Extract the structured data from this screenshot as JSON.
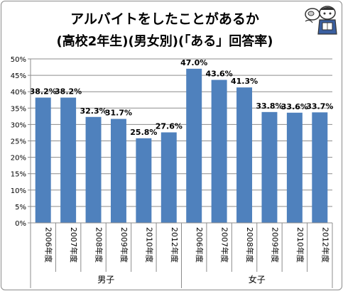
{
  "title_line1": "アルバイトをしたことがあるか",
  "title_line2": "(高校2年生)(男女別)(「ある」回答率)",
  "chart_data": {
    "type": "bar",
    "ylim": [
      0,
      50
    ],
    "yticks": [
      0,
      5,
      10,
      15,
      20,
      25,
      30,
      35,
      40,
      45,
      50
    ],
    "ytick_labels": [
      "0%",
      "5%",
      "10%",
      "15%",
      "20%",
      "25%",
      "30%",
      "35%",
      "40%",
      "45%",
      "50%"
    ],
    "grid": true,
    "bar_color": "#4f81bd",
    "groups": [
      {
        "name": "男子",
        "categories": [
          "2006年度",
          "2007年度",
          "2008年度",
          "2009年度",
          "2010年度",
          "2012年度"
        ],
        "values": [
          38.2,
          38.2,
          32.3,
          31.7,
          25.8,
          27.6
        ],
        "labels": [
          "38.2%",
          "38.2%",
          "32.3%",
          "31.7%",
          "25.8%",
          "27.6%"
        ]
      },
      {
        "name": "女子",
        "categories": [
          "2006年度",
          "2007年度",
          "2008年度",
          "2009年度",
          "2010年度",
          "2012年度"
        ],
        "values": [
          47.0,
          43.6,
          41.3,
          33.8,
          33.6,
          33.7
        ],
        "labels": [
          "47.0%",
          "43.6%",
          "41.3%",
          "33.8%",
          "33.6%",
          "33.7%"
        ]
      }
    ]
  }
}
